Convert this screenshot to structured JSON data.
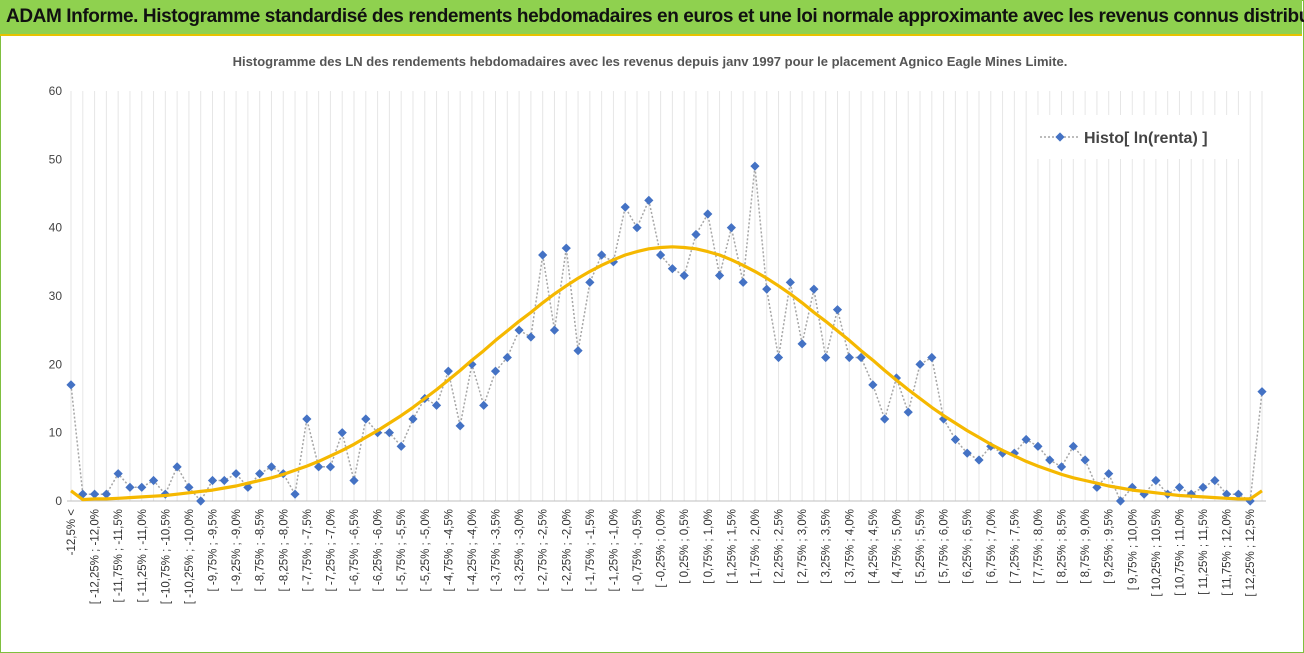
{
  "header": {
    "title": "ADAM Informe. Histogramme standardisé des rendements hebdomadaires en euros et une loi normale approximante avec les revenus connus distribués"
  },
  "chart_data": {
    "type": "line",
    "title": "Histogramme des LN des rendements hebdomadaires avec les revenus depuis janv 1997 pour le placement Agnico Eagle Mines Limite.",
    "categories": [
      "-12,5% <",
      null,
      "[ -12,25% ; -12,0%",
      null,
      "[ -11,75% ; -11,5%",
      null,
      "[ -11,25% ; -11,0%",
      null,
      "[ -10,75% ; -10,5%",
      null,
      "[ -10,25% ; -10,0%",
      null,
      "[ -9,75% ; -9,5%",
      null,
      "[ -9,25% ; -9,0%",
      null,
      "[ -8,75% ; -8,5%",
      null,
      "[ -8,25% ; -8,0%",
      null,
      "[ -7,75% ; -7,5%",
      null,
      "[ -7,25% ; -7,0%",
      null,
      "[ -6,75% ; -6,5%",
      null,
      "[ -6,25% ; -6,0%",
      null,
      "[ -5,75% ; -5,5%",
      null,
      "[ -5,25% ; -5,0%",
      null,
      "[ -4,75% ; -4,5%",
      null,
      "[ -4,25% ; -4,0%",
      null,
      "[ -3,75% ; -3,5%",
      null,
      "[ -3,25% ; -3,0%",
      null,
      "[ -2,75% ; -2,5%",
      null,
      "[ -2,25% ; -2,0%",
      null,
      "[ -1,75% ; -1,5%",
      null,
      "[ -1,25% ; -1,0%",
      null,
      "[ -0,75% ; -0,5%",
      null,
      "[ -0,25% ; 0,0%",
      null,
      "[ 0,25% ; 0,5%",
      null,
      "[ 0,75% ; 1,0%",
      null,
      "[ 1,25% ; 1,5%",
      null,
      "[ 1,75% ; 2,0%",
      null,
      "[ 2,25% ; 2,5%",
      null,
      "[ 2,75% ; 3,0%",
      null,
      "[ 3,25% ; 3,5%",
      null,
      "[ 3,75% ; 4,0%",
      null,
      "[ 4,25% ; 4,5%",
      null,
      "[ 4,75% ; 5,0%",
      null,
      "[ 5,25% ; 5,5%",
      null,
      "[ 5,75% ; 6,0%",
      null,
      "[ 6,25% ; 6,5%",
      null,
      "[ 6,75% ; 7,0%",
      null,
      "[ 7,25% ; 7,5%",
      null,
      "[ 7,75% ; 8,0%",
      null,
      "[ 8,25% ; 8,5%",
      null,
      "[ 8,75% ; 9,0%",
      null,
      "[ 9,25% ; 9,5%",
      null,
      "[ 9,75% ; 10,0%",
      null,
      "[ 10,25% ; 10,5%",
      null,
      "[ 10,75% ; 11,0%",
      null,
      "[ 11,25% ; 11,5%",
      null,
      "[ 11,75% ; 12,0%",
      null,
      "[ 12,25% ; 12,5%",
      null
    ],
    "series": [
      {
        "name": "Histo[ ln(renta) ]",
        "color": "#4472c4",
        "line_color": "#a6a6a6",
        "marker": "diamond",
        "values": [
          17,
          1,
          1,
          1,
          4,
          2,
          2,
          3,
          1,
          5,
          2,
          0,
          3,
          3,
          4,
          2,
          4,
          5,
          4,
          1,
          12,
          5,
          5,
          10,
          3,
          12,
          10,
          10,
          8,
          12,
          15,
          14,
          19,
          11,
          20,
          14,
          19,
          21,
          25,
          24,
          36,
          25,
          37,
          22,
          32,
          36,
          35,
          43,
          40,
          44,
          36,
          34,
          33,
          39,
          42,
          33,
          40,
          32,
          49,
          31,
          21,
          32,
          23,
          31,
          21,
          28,
          21,
          21,
          17,
          12,
          18,
          13,
          20,
          21,
          12,
          9,
          7,
          6,
          8,
          7,
          7,
          9,
          8,
          6,
          5,
          8,
          6,
          2,
          4,
          0,
          2,
          1,
          3,
          1,
          2,
          1,
          2,
          3,
          1,
          1,
          0,
          16
        ]
      },
      {
        "color": "#f5b800",
        "values": [
          1.5,
          0.2,
          0.3,
          0.3,
          0.4,
          0.5,
          0.6,
          0.7,
          0.8,
          1.0,
          1.2,
          1.4,
          1.6,
          1.9,
          2.2,
          2.6,
          3.0,
          3.4,
          3.9,
          4.5,
          5.1,
          5.8,
          6.6,
          7.4,
          8.3,
          9.3,
          10.3,
          11.4,
          12.5,
          13.7,
          15.0,
          16.3,
          17.7,
          19.1,
          20.6,
          22.0,
          23.5,
          24.9,
          26.3,
          27.6,
          29.0,
          30.3,
          31.5,
          32.6,
          33.6,
          34.5,
          35.3,
          36.0,
          36.5,
          36.9,
          37.1,
          37.2,
          37.1,
          36.9,
          36.5,
          36.0,
          35.3,
          34.5,
          33.6,
          32.6,
          31.5,
          30.3,
          29.0,
          27.6,
          26.3,
          24.9,
          23.5,
          22.0,
          20.6,
          19.1,
          17.7,
          16.3,
          15.0,
          13.7,
          12.5,
          11.4,
          10.3,
          9.3,
          8.3,
          7.4,
          6.6,
          5.8,
          5.1,
          4.5,
          3.9,
          3.4,
          3.0,
          2.6,
          2.2,
          1.9,
          1.6,
          1.4,
          1.2,
          1.0,
          0.8,
          0.7,
          0.6,
          0.5,
          0.4,
          0.3,
          0.3,
          1.5
        ]
      }
    ],
    "ylim": [
      0,
      60
    ],
    "yticks": [
      0,
      10,
      20,
      30,
      40,
      50,
      60
    ],
    "grid": "x",
    "legend": "top-right"
  }
}
